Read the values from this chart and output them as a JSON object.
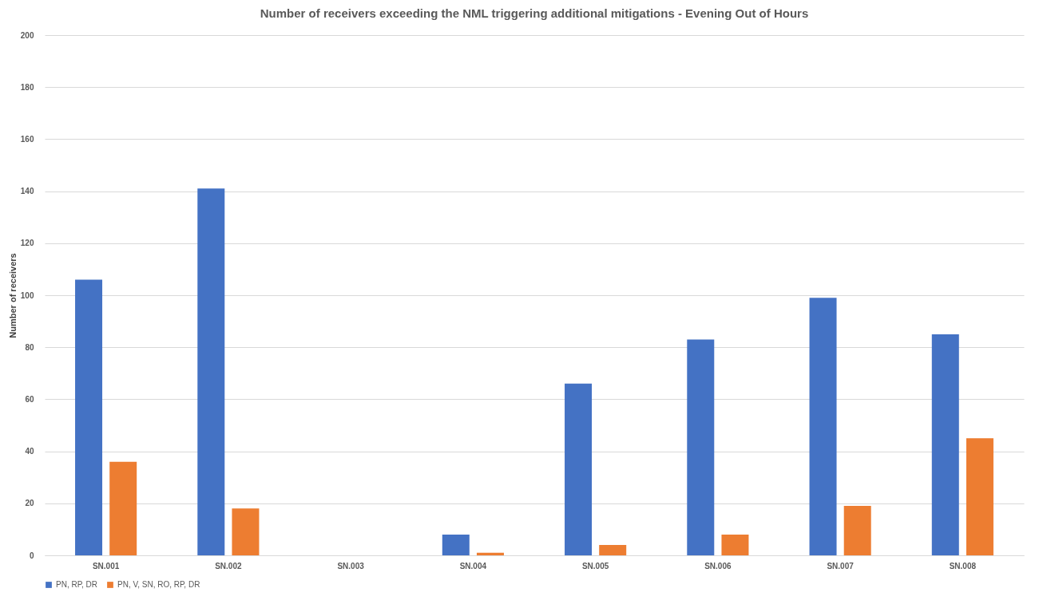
{
  "chart_data": {
    "type": "bar",
    "title": "Number of receivers exceeding the NML triggering additional mitigations - Evening Out of Hours",
    "ylabel": "Number of receivers",
    "categories": [
      "SN.001",
      "SN.002",
      "SN.003",
      "SN.004",
      "SN.005",
      "SN.006",
      "SN.007",
      "SN.008"
    ],
    "series": [
      {
        "name": "PN, RP, DR",
        "color": "#4472c4",
        "values": [
          106,
          141,
          0,
          8,
          66,
          83,
          99,
          85
        ]
      },
      {
        "name": "PN, V, SN, RO, RP, DR",
        "color": "#ed7d31",
        "values": [
          36,
          18,
          0,
          1,
          4,
          8,
          19,
          45
        ]
      }
    ],
    "ylim": [
      0,
      200
    ],
    "yticks": [
      0,
      20,
      40,
      60,
      80,
      100,
      120,
      140,
      160,
      180,
      200
    ],
    "grid": "y",
    "legend": "bottom"
  }
}
